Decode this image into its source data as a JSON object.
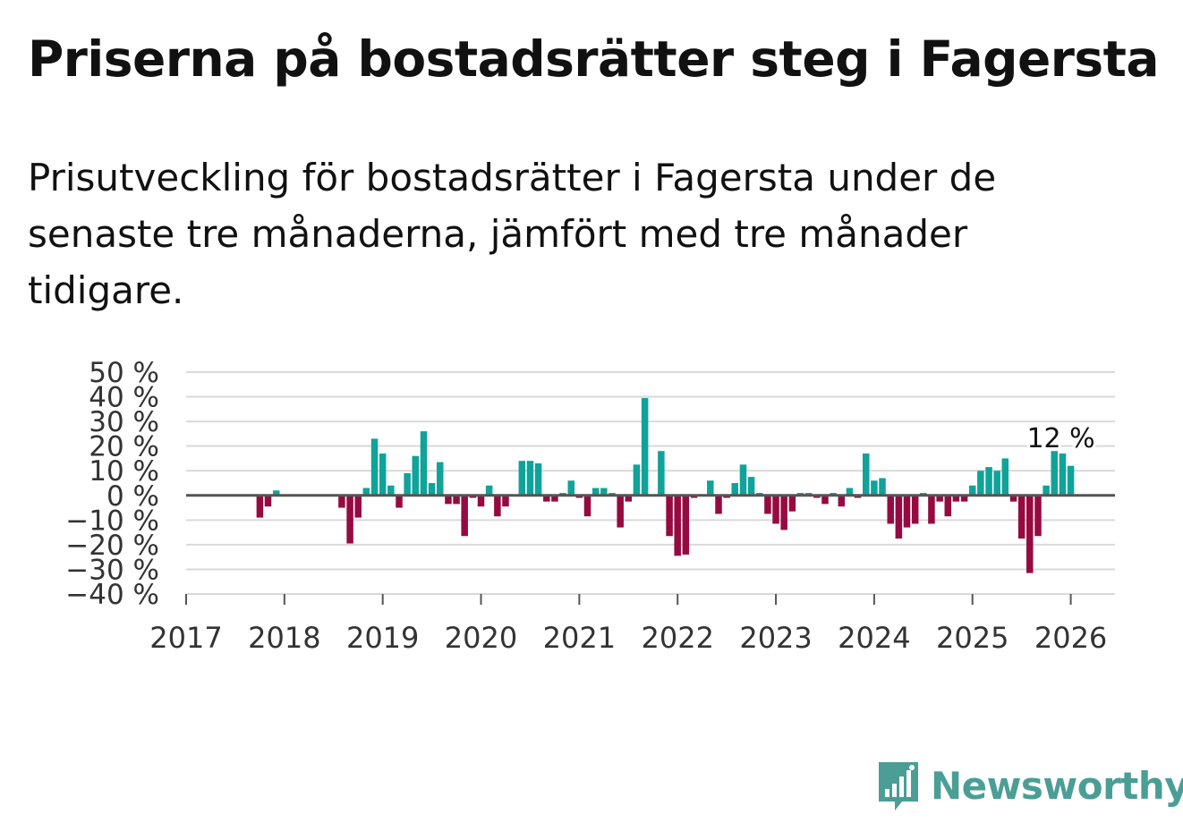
{
  "title": "Priserna på bostadsrätter steg i Fagersta",
  "subtitle": "Prisutveckling för bostadsrätter i Fagersta under de senaste tre månaderna, jämfört med tre månader tidigare.",
  "brand": {
    "name": "Newsworthy",
    "color": "#4a9e96"
  },
  "colors": {
    "positive": "#0fa39a",
    "negative": "#960a42",
    "grid": "#d9d9d9",
    "zero": "#555555",
    "text": "#333333"
  },
  "chart_data": {
    "type": "bar",
    "title": "Priserna på bostadsrätter steg i Fagersta",
    "xlabel": "",
    "ylabel": "",
    "ylim": [
      -40,
      50
    ],
    "xlim": [
      2017,
      2026.45
    ],
    "y_ticks": [
      50,
      40,
      30,
      20,
      10,
      0,
      -10,
      -20,
      -30,
      -40
    ],
    "y_tick_labels": [
      "50 %",
      "40 %",
      "30 %",
      "20 %",
      "10 %",
      "0 %",
      "−10 %",
      "−20 %",
      "−30 %",
      "−40 %"
    ],
    "x_ticks": [
      2017,
      2018,
      2019,
      2020,
      2021,
      2022,
      2023,
      2024,
      2025,
      2026
    ],
    "x_tick_labels": [
      "2017",
      "2018",
      "2019",
      "2020",
      "2021",
      "2022",
      "2023",
      "2024",
      "2025",
      "2026"
    ],
    "annotation": {
      "x": 2025.9,
      "text": "12 %"
    },
    "series": [
      {
        "name": "Prisutveckling",
        "x": [
          2017.75,
          2017.833,
          2017.917,
          2018.583,
          2018.667,
          2018.75,
          2018.833,
          2018.917,
          2019.0,
          2019.083,
          2019.167,
          2019.25,
          2019.333,
          2019.417,
          2019.5,
          2019.583,
          2019.667,
          2019.75,
          2019.833,
          2019.917,
          2020.0,
          2020.083,
          2020.167,
          2020.25,
          2020.333,
          2020.417,
          2020.5,
          2020.583,
          2020.667,
          2020.75,
          2020.833,
          2020.917,
          2021.0,
          2021.083,
          2021.167,
          2021.25,
          2021.333,
          2021.417,
          2021.5,
          2021.583,
          2021.667,
          2021.75,
          2021.833,
          2021.917,
          2022.0,
          2022.083,
          2022.167,
          2022.25,
          2022.333,
          2022.417,
          2022.5,
          2022.583,
          2022.667,
          2022.75,
          2022.833,
          2022.917,
          2023.0,
          2023.083,
          2023.167,
          2023.25,
          2023.333,
          2023.417,
          2023.5,
          2023.583,
          2023.667,
          2023.75,
          2023.833,
          2023.917,
          2024.0,
          2024.083,
          2024.167,
          2024.25,
          2024.333,
          2024.417,
          2024.5,
          2024.583,
          2024.667,
          2024.75,
          2024.833,
          2024.917,
          2025.0,
          2025.083,
          2025.167,
          2025.25,
          2025.333,
          2025.417,
          2025.5,
          2025.583,
          2025.667,
          2025.75,
          2025.833,
          2025.917,
          2026.0
        ],
        "values": [
          -9,
          -4.5,
          2,
          -5,
          -19.5,
          -9,
          3,
          23,
          17,
          4,
          -5,
          9,
          16,
          26,
          5,
          13.5,
          -3.5,
          -3.5,
          -16.5,
          -1,
          -4.5,
          4,
          -8.5,
          -4.5,
          0,
          14,
          14,
          13,
          -2.5,
          -2.5,
          1,
          6,
          -1,
          -8.5,
          3,
          3,
          1,
          -13,
          -2.5,
          12.5,
          39.5,
          0,
          18,
          -16.5,
          -24.5,
          -24,
          -1,
          0,
          6,
          -7.5,
          -1,
          5,
          12.5,
          7.5,
          1,
          -7.5,
          -11.5,
          -14,
          -6.5,
          1,
          1,
          -1,
          -3.5,
          1,
          -4.5,
          3,
          -1,
          17,
          6,
          7,
          -11.5,
          -17.5,
          -13,
          -11.5,
          1,
          -11.5,
          -2.5,
          -8.5,
          -2.5,
          -2.5,
          4,
          10,
          11.5,
          10,
          15,
          -2.5,
          -17.5,
          -31.5,
          -16.5,
          4,
          18,
          17,
          12
        ]
      }
    ]
  }
}
